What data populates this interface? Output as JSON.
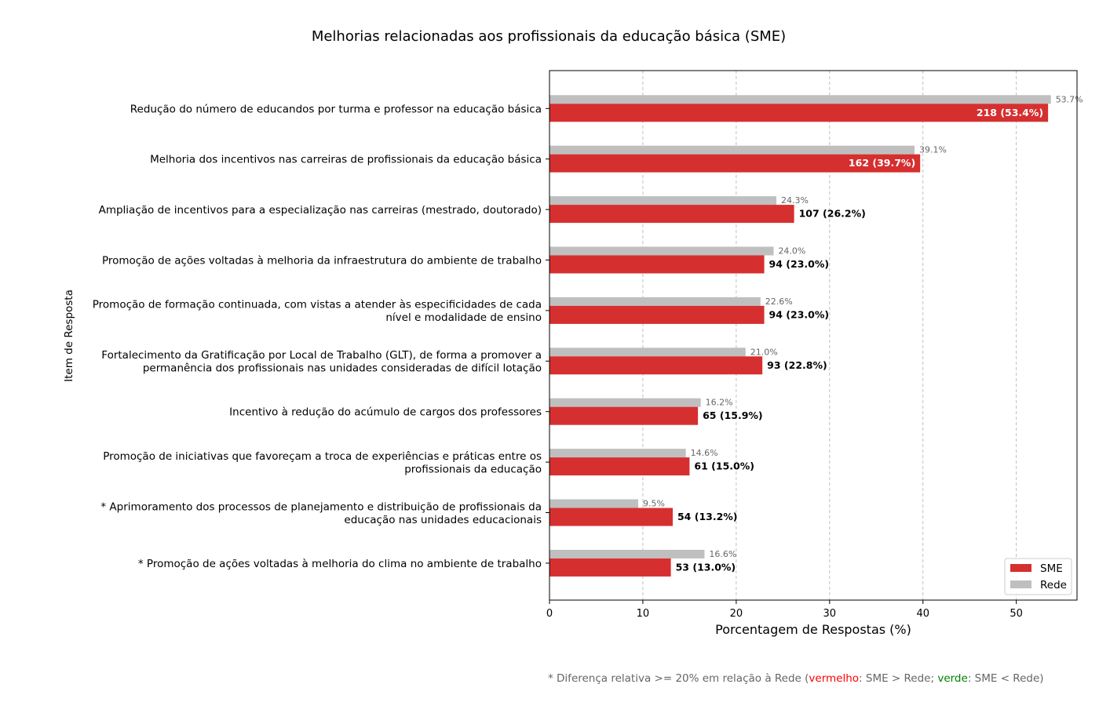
{
  "chart_data": {
    "type": "bar",
    "orientation": "horizontal",
    "title": "Melhorias relacionadas aos profissionais da educação básica (SME)",
    "xlabel": "Porcentagem de Respostas (%)",
    "ylabel": "Item de Resposta",
    "xlim": [
      0,
      56.5
    ],
    "xticks": [
      0,
      10,
      20,
      30,
      40,
      50
    ],
    "grid": "x-dashed",
    "legend_position": "bottom-right",
    "categories": [
      {
        "lines": [
          "Redução do número de educandos por turma e professor na educação básica"
        ],
        "highlight": "none"
      },
      {
        "lines": [
          "Melhoria dos incentivos nas carreiras de profissionais da educação básica"
        ],
        "highlight": "none"
      },
      {
        "lines": [
          "Ampliação de incentivos para a especialização nas carreiras (mestrado, doutorado)"
        ],
        "highlight": "none"
      },
      {
        "lines": [
          "Promoção de ações voltadas à melhoria da infraestrutura do ambiente de trabalho"
        ],
        "highlight": "none"
      },
      {
        "lines": [
          "Promoção de formação continuada, com vistas a atender às especificidades de cada",
          "nível e modalidade de ensino"
        ],
        "highlight": "none"
      },
      {
        "lines": [
          "Fortalecimento da Gratificação por Local de Trabalho (GLT), de forma a promover a",
          "permanência dos profissionais nas unidades consideradas de difícil lotação"
        ],
        "highlight": "none"
      },
      {
        "lines": [
          "Incentivo à redução do acúmulo de cargos dos professores"
        ],
        "highlight": "none"
      },
      {
        "lines": [
          "Promoção de iniciativas que favoreçam a troca de experiências e práticas entre os",
          "profissionais da educação"
        ],
        "highlight": "none"
      },
      {
        "lines": [
          "* Aprimoramento dos processos de planejamento e distribuição de profissionais da",
          "educação nas unidades educacionais"
        ],
        "highlight": "red"
      },
      {
        "lines": [
          "* Promoção de ações voltadas à melhoria do clima no ambiente de trabalho"
        ],
        "highlight": "green"
      }
    ],
    "series": [
      {
        "name": "SME",
        "color": "#d62f2f",
        "values": [
          53.4,
          39.7,
          26.2,
          23.0,
          23.0,
          22.8,
          15.9,
          15.0,
          13.2,
          13.0
        ],
        "labels": [
          "218 (53.4%)",
          "162 (39.7%)",
          "107 (26.2%)",
          "94 (23.0%)",
          "94 (23.0%)",
          "93 (22.8%)",
          "65 (15.9%)",
          "61 (15.0%)",
          "54 (13.2%)",
          "53 (13.0%)"
        ],
        "label_inside": [
          true,
          true,
          false,
          false,
          false,
          false,
          false,
          false,
          false,
          false
        ]
      },
      {
        "name": "Rede",
        "color": "#bfbfbf",
        "values": [
          53.7,
          39.1,
          24.3,
          24.0,
          22.6,
          21.0,
          16.2,
          14.6,
          9.5,
          16.6
        ],
        "labels": [
          "53.7%",
          "39.1%",
          "24.3%",
          "24.0%",
          "22.6%",
          "21.0%",
          "16.2%",
          "14.6%",
          "9.5%",
          "16.6%"
        ]
      }
    ]
  },
  "footnote": {
    "prefix": "* Diferença relativa >= 20% em relação à Rede (",
    "red_word": "vermelho",
    "middle": ": SME > Rede; ",
    "green_word": "verde",
    "suffix": ": SME < Rede)"
  },
  "colors": {
    "highlight_red": "#ff0000",
    "highlight_green": "#008000",
    "grid": "#b0b0b0"
  }
}
